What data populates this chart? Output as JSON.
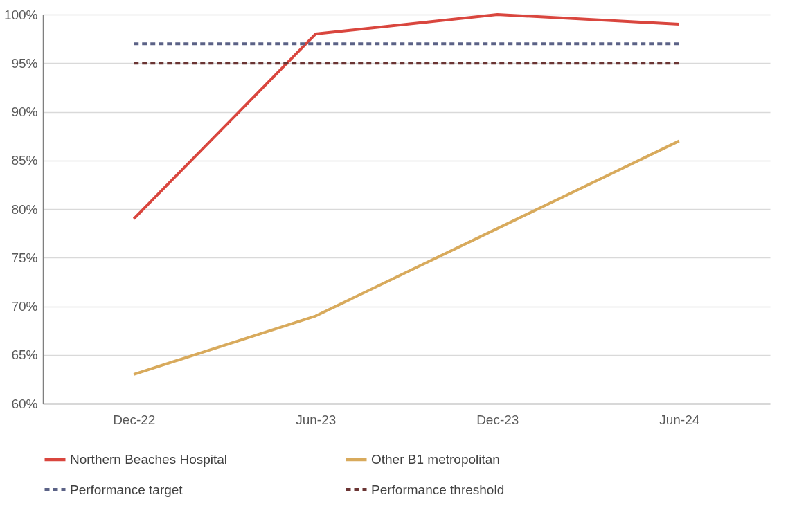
{
  "chart_data": {
    "type": "line",
    "categories": [
      "Dec-22",
      "Jun-23",
      "Dec-23",
      "Jun-24"
    ],
    "series": [
      {
        "name": "Northern Beaches Hospital",
        "color": "#d9463e",
        "values": [
          79,
          98,
          100,
          99
        ]
      },
      {
        "name": "Other B1 metropolitan",
        "color": "#d8aa5c",
        "values": [
          63,
          69,
          78,
          87
        ]
      },
      {
        "name": "Performance target",
        "color": "#5b6286",
        "values": [
          97,
          97,
          97,
          97
        ],
        "line_style": "dashed"
      },
      {
        "name": "Performance threshold",
        "color": "#6a3433",
        "values": [
          95,
          95,
          95,
          95
        ],
        "line_style": "dashed"
      }
    ],
    "ylim": [
      60,
      100
    ],
    "yticks": [
      {
        "value": 60,
        "label": "60%"
      },
      {
        "value": 65,
        "label": "65%"
      },
      {
        "value": 70,
        "label": "70%"
      },
      {
        "value": 75,
        "label": "75%"
      },
      {
        "value": 80,
        "label": "80%"
      },
      {
        "value": 85,
        "label": "85%"
      },
      {
        "value": 90,
        "label": "90%"
      },
      {
        "value": 95,
        "label": "95%"
      },
      {
        "value": 100,
        "label": "100%"
      }
    ],
    "grid": "y",
    "legend": "bottom",
    "line_style": "solid"
  }
}
